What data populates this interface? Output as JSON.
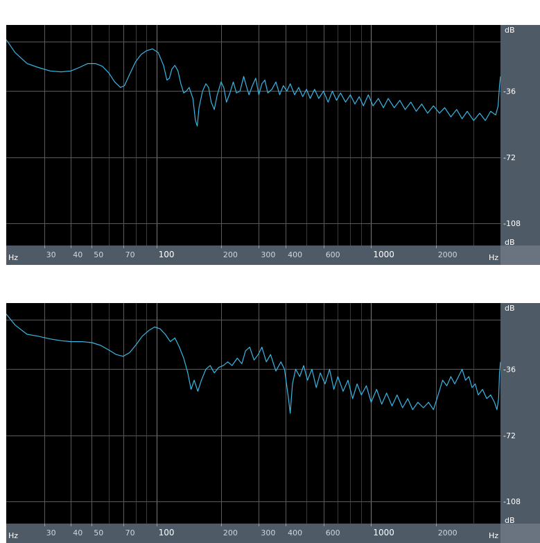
{
  "colors": {
    "plot_bg": "#000000",
    "grid": "#5a5a5a",
    "grid_minor": "#3c3c3c",
    "axis_bar": "#4e5a66",
    "axis_bar_corner": "#6a7480",
    "label_text": "#ffffff",
    "trace": "#38b8e8"
  },
  "chart_data": [
    {
      "type": "line",
      "x_scale": "log",
      "xlim": [
        20,
        4000
      ],
      "ylim": [
        -120,
        0
      ],
      "x_unit": "Hz",
      "y_unit": "dB",
      "x_tick_labels": [
        {
          "value": 30,
          "label": "30"
        },
        {
          "value": 40,
          "label": "40"
        },
        {
          "value": 50,
          "label": "50"
        },
        {
          "value": 70,
          "label": "70"
        },
        {
          "value": 100,
          "label": "100",
          "major": true
        },
        {
          "value": 200,
          "label": "200"
        },
        {
          "value": 300,
          "label": "300"
        },
        {
          "value": 400,
          "label": "400"
        },
        {
          "value": 600,
          "label": "600"
        },
        {
          "value": 1000,
          "label": "1000",
          "major": true
        },
        {
          "value": 2000,
          "label": "2000"
        }
      ],
      "y_tick_labels": [
        {
          "value": -36,
          "label": "-36"
        },
        {
          "value": -72,
          "label": "-72"
        },
        {
          "value": -108,
          "label": "-108"
        }
      ],
      "grid": true,
      "series": [
        {
          "points": [
            [
              20,
              -8
            ],
            [
              22,
              -15
            ],
            [
              25,
              -21
            ],
            [
              28,
              -23
            ],
            [
              32,
              -25
            ],
            [
              36,
              -25.5
            ],
            [
              40,
              -25
            ],
            [
              44,
              -23
            ],
            [
              48,
              -21
            ],
            [
              52,
              -21
            ],
            [
              56,
              -22.5
            ],
            [
              60,
              -26
            ],
            [
              64,
              -31
            ],
            [
              68,
              -34
            ],
            [
              71,
              -33
            ],
            [
              75,
              -27
            ],
            [
              80,
              -20
            ],
            [
              85,
              -16
            ],
            [
              90,
              -14
            ],
            [
              96,
              -13
            ],
            [
              102,
              -15
            ],
            [
              108,
              -22
            ],
            [
              112,
              -30
            ],
            [
              115,
              -29
            ],
            [
              118,
              -24
            ],
            [
              122,
              -22
            ],
            [
              126,
              -25
            ],
            [
              130,
              -32
            ],
            [
              134,
              -37
            ],
            [
              138,
              -36
            ],
            [
              142,
              -34
            ],
            [
              148,
              -40
            ],
            [
              152,
              -52
            ],
            [
              155,
              -55
            ],
            [
              158,
              -45
            ],
            [
              164,
              -36
            ],
            [
              170,
              -32
            ],
            [
              175,
              -34
            ],
            [
              180,
              -42
            ],
            [
              186,
              -46
            ],
            [
              192,
              -38
            ],
            [
              200,
              -31
            ],
            [
              206,
              -34
            ],
            [
              212,
              -42
            ],
            [
              220,
              -37
            ],
            [
              228,
              -31
            ],
            [
              236,
              -37
            ],
            [
              245,
              -36
            ],
            [
              255,
              -28
            ],
            [
              262,
              -33
            ],
            [
              270,
              -38
            ],
            [
              280,
              -33
            ],
            [
              290,
              -29
            ],
            [
              300,
              -38
            ],
            [
              310,
              -32
            ],
            [
              320,
              -30
            ],
            [
              330,
              -37
            ],
            [
              345,
              -35
            ],
            [
              360,
              -31
            ],
            [
              375,
              -38
            ],
            [
              390,
              -33
            ],
            [
              405,
              -36
            ],
            [
              420,
              -32
            ],
            [
              440,
              -38
            ],
            [
              460,
              -34
            ],
            [
              480,
              -39
            ],
            [
              500,
              -35
            ],
            [
              520,
              -40
            ],
            [
              545,
              -35
            ],
            [
              570,
              -40
            ],
            [
              600,
              -36
            ],
            [
              630,
              -42
            ],
            [
              660,
              -36
            ],
            [
              690,
              -41
            ],
            [
              720,
              -37
            ],
            [
              760,
              -42
            ],
            [
              800,
              -38
            ],
            [
              840,
              -43
            ],
            [
              880,
              -39
            ],
            [
              920,
              -44
            ],
            [
              970,
              -38
            ],
            [
              1020,
              -44
            ],
            [
              1080,
              -40
            ],
            [
              1140,
              -45
            ],
            [
              1200,
              -40
            ],
            [
              1280,
              -45
            ],
            [
              1360,
              -41
            ],
            [
              1440,
              -46
            ],
            [
              1530,
              -42
            ],
            [
              1620,
              -47
            ],
            [
              1720,
              -43
            ],
            [
              1830,
              -48
            ],
            [
              1950,
              -44
            ],
            [
              2080,
              -48
            ],
            [
              2200,
              -45
            ],
            [
              2350,
              -50
            ],
            [
              2500,
              -46
            ],
            [
              2650,
              -51
            ],
            [
              2800,
              -47
            ],
            [
              3000,
              -52
            ],
            [
              3200,
              -48
            ],
            [
              3400,
              -52
            ],
            [
              3600,
              -47
            ],
            [
              3800,
              -49
            ],
            [
              3900,
              -44
            ],
            [
              3960,
              -33
            ],
            [
              4000,
              -28
            ]
          ]
        }
      ]
    },
    {
      "type": "line",
      "x_scale": "log",
      "xlim": [
        20,
        4000
      ],
      "ylim": [
        -120,
        0
      ],
      "x_unit": "Hz",
      "y_unit": "dB",
      "x_tick_labels": [
        {
          "value": 30,
          "label": "30"
        },
        {
          "value": 40,
          "label": "40"
        },
        {
          "value": 50,
          "label": "50"
        },
        {
          "value": 70,
          "label": "70"
        },
        {
          "value": 100,
          "label": "100",
          "major": true
        },
        {
          "value": 200,
          "label": "200"
        },
        {
          "value": 300,
          "label": "300"
        },
        {
          "value": 400,
          "label": "400"
        },
        {
          "value": 600,
          "label": "600"
        },
        {
          "value": 1000,
          "label": "1000",
          "major": true
        },
        {
          "value": 2000,
          "label": "2000"
        }
      ],
      "y_tick_labels": [
        {
          "value": -36,
          "label": "-36"
        },
        {
          "value": -72,
          "label": "-72"
        },
        {
          "value": -108,
          "label": "-108"
        }
      ],
      "grid": true,
      "series": [
        {
          "points": [
            [
              20,
              -6
            ],
            [
              22,
              -12
            ],
            [
              25,
              -17
            ],
            [
              28,
              -18
            ],
            [
              32,
              -19.5
            ],
            [
              36,
              -20.5
            ],
            [
              40,
              -21
            ],
            [
              45,
              -21
            ],
            [
              50,
              -21.5
            ],
            [
              55,
              -23
            ],
            [
              60,
              -25.5
            ],
            [
              65,
              -28
            ],
            [
              70,
              -29
            ],
            [
              75,
              -27
            ],
            [
              80,
              -23
            ],
            [
              86,
              -18
            ],
            [
              92,
              -15
            ],
            [
              98,
              -13
            ],
            [
              104,
              -14
            ],
            [
              110,
              -17
            ],
            [
              116,
              -21
            ],
            [
              122,
              -19
            ],
            [
              128,
              -24
            ],
            [
              134,
              -30
            ],
            [
              140,
              -38
            ],
            [
              145,
              -47
            ],
            [
              150,
              -42
            ],
            [
              156,
              -48
            ],
            [
              162,
              -42
            ],
            [
              170,
              -36
            ],
            [
              178,
              -34
            ],
            [
              186,
              -38
            ],
            [
              195,
              -35
            ],
            [
              205,
              -34
            ],
            [
              215,
              -32
            ],
            [
              225,
              -34
            ],
            [
              238,
              -30
            ],
            [
              250,
              -33
            ],
            [
              260,
              -26
            ],
            [
              272,
              -24
            ],
            [
              285,
              -31
            ],
            [
              298,
              -28
            ],
            [
              310,
              -24
            ],
            [
              325,
              -32
            ],
            [
              340,
              -28
            ],
            [
              360,
              -37
            ],
            [
              380,
              -32
            ],
            [
              395,
              -36
            ],
            [
              410,
              -50
            ],
            [
              420,
              -60
            ],
            [
              430,
              -44
            ],
            [
              445,
              -36
            ],
            [
              465,
              -40
            ],
            [
              485,
              -34
            ],
            [
              505,
              -42
            ],
            [
              530,
              -36
            ],
            [
              555,
              -46
            ],
            [
              580,
              -38
            ],
            [
              610,
              -44
            ],
            [
              640,
              -36
            ],
            [
              670,
              -47
            ],
            [
              700,
              -40
            ],
            [
              740,
              -48
            ],
            [
              780,
              -42
            ],
            [
              820,
              -52
            ],
            [
              860,
              -44
            ],
            [
              900,
              -50
            ],
            [
              950,
              -45
            ],
            [
              1000,
              -54
            ],
            [
              1060,
              -47
            ],
            [
              1120,
              -55
            ],
            [
              1180,
              -49
            ],
            [
              1250,
              -56
            ],
            [
              1320,
              -50
            ],
            [
              1400,
              -57
            ],
            [
              1480,
              -52
            ],
            [
              1560,
              -58
            ],
            [
              1650,
              -54
            ],
            [
              1750,
              -57
            ],
            [
              1850,
              -54
            ],
            [
              1950,
              -58
            ],
            [
              2050,
              -50
            ],
            [
              2150,
              -42
            ],
            [
              2250,
              -45
            ],
            [
              2350,
              -40
            ],
            [
              2450,
              -44
            ],
            [
              2550,
              -40
            ],
            [
              2650,
              -36
            ],
            [
              2750,
              -42
            ],
            [
              2850,
              -40
            ],
            [
              2950,
              -46
            ],
            [
              3050,
              -44
            ],
            [
              3150,
              -50
            ],
            [
              3300,
              -47
            ],
            [
              3450,
              -52
            ],
            [
              3600,
              -50
            ],
            [
              3750,
              -54
            ],
            [
              3850,
              -58
            ],
            [
              3920,
              -52
            ],
            [
              3960,
              -38
            ],
            [
              4000,
              -32
            ]
          ]
        }
      ]
    }
  ]
}
